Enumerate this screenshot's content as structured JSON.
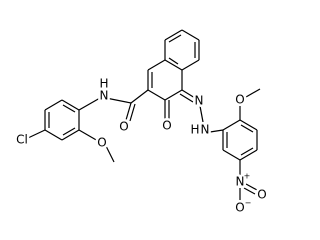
{
  "atoms": {
    "cl": "Cl",
    "amide_n": "N",
    "amide_h": "H",
    "amide_o": "O",
    "ome1_o": "O",
    "keto_o": "O",
    "azo_n": "N",
    "hydrazo_n": "N",
    "hydrazo_h": "H",
    "ome2_o": "O",
    "nitro_n": "N",
    "nitro_plus": "+",
    "nitro_o1": "O",
    "nitro_o2": "O",
    "nitro_minus": "−"
  }
}
